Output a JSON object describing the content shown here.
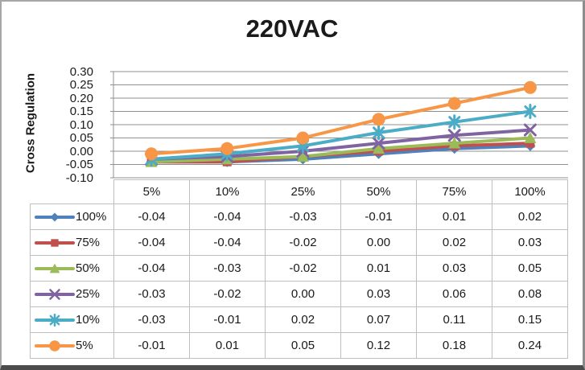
{
  "frame": {
    "background": "#ffffff"
  },
  "chart_data": {
    "type": "line",
    "title": "220VAC",
    "xlabel": "",
    "ylabel": "Cross Regulation",
    "categories": [
      "5%",
      "10%",
      "25%",
      "50%",
      "75%",
      "100%"
    ],
    "series": [
      {
        "name": "100%",
        "marker": "diamond",
        "color": "#4F81BD",
        "values": [
          -0.04,
          -0.04,
          -0.03,
          -0.01,
          0.01,
          0.02
        ]
      },
      {
        "name": "75%",
        "marker": "square",
        "color": "#C0504D",
        "values": [
          -0.04,
          -0.04,
          -0.02,
          0.0,
          0.02,
          0.03
        ]
      },
      {
        "name": "50%",
        "marker": "triangle",
        "color": "#9BBB59",
        "values": [
          -0.04,
          -0.03,
          -0.02,
          0.01,
          0.03,
          0.05
        ]
      },
      {
        "name": "25%",
        "marker": "x",
        "color": "#8064A2",
        "values": [
          -0.03,
          -0.02,
          0.0,
          0.03,
          0.06,
          0.08
        ]
      },
      {
        "name": "10%",
        "marker": "asterisk",
        "color": "#4BACC6",
        "values": [
          -0.03,
          -0.01,
          0.02,
          0.07,
          0.11,
          0.15
        ]
      },
      {
        "name": "5%",
        "marker": "circle",
        "color": "#F79646",
        "values": [
          -0.01,
          0.01,
          0.05,
          0.12,
          0.18,
          0.24
        ]
      }
    ],
    "ylim": [
      -0.1,
      0.3
    ],
    "ytick_step": 0.05,
    "ytick_labels": [
      "0.30",
      "0.25",
      "0.20",
      "0.15",
      "0.10",
      "0.05",
      "0.00",
      "-0.05",
      "-0.10"
    ],
    "grid": true,
    "legend_position": "data-table-left",
    "value_decimals": 2,
    "colors": {
      "gridline": "#8f8f8f",
      "axis_line": "#8f8f8f",
      "table_border": "#bfbfbf",
      "text": "#1a1a1a"
    }
  }
}
